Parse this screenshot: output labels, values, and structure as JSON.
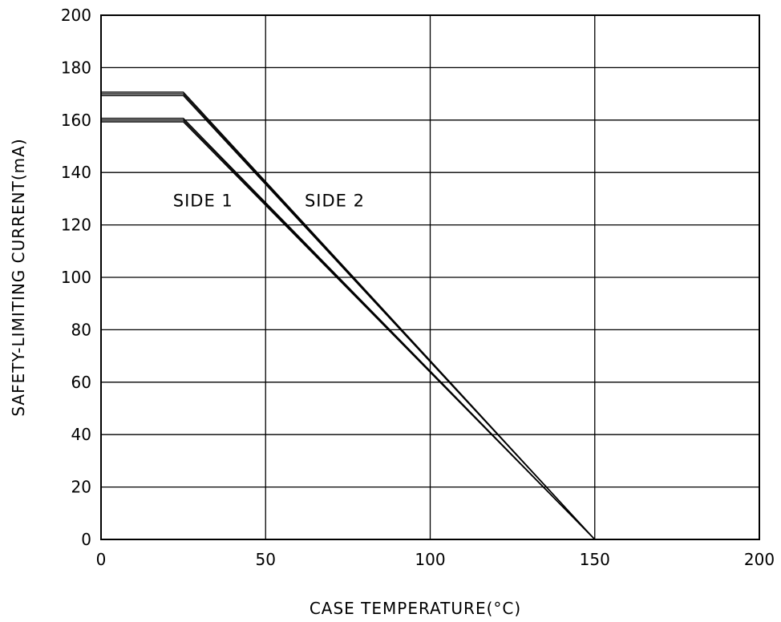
{
  "chart_data": {
    "type": "line",
    "title": "",
    "xlabel": "CASE TEMPERATURE(°C)",
    "ylabel": "SAFETY-LIMITING CURRENT(mA)",
    "xlim": [
      0,
      200
    ],
    "ylim": [
      0,
      200
    ],
    "xticks": [
      0,
      50,
      100,
      150,
      200
    ],
    "yticks": [
      0,
      20,
      40,
      60,
      80,
      100,
      120,
      140,
      160,
      180,
      200
    ],
    "grid": true,
    "series": [
      {
        "name": "SIDE 1",
        "x": [
          0,
          25,
          150
        ],
        "y": [
          160,
          160,
          0
        ],
        "colors": "#000000"
      },
      {
        "name": "SIDE 2",
        "x": [
          0,
          25,
          150
        ],
        "y": [
          170,
          170,
          0
        ],
        "colors": "#000000"
      }
    ],
    "annotations": [
      {
        "text": "SIDE 1",
        "x": 31,
        "y": 127
      },
      {
        "text": "SIDE 2",
        "x": 71,
        "y": 127
      }
    ]
  }
}
